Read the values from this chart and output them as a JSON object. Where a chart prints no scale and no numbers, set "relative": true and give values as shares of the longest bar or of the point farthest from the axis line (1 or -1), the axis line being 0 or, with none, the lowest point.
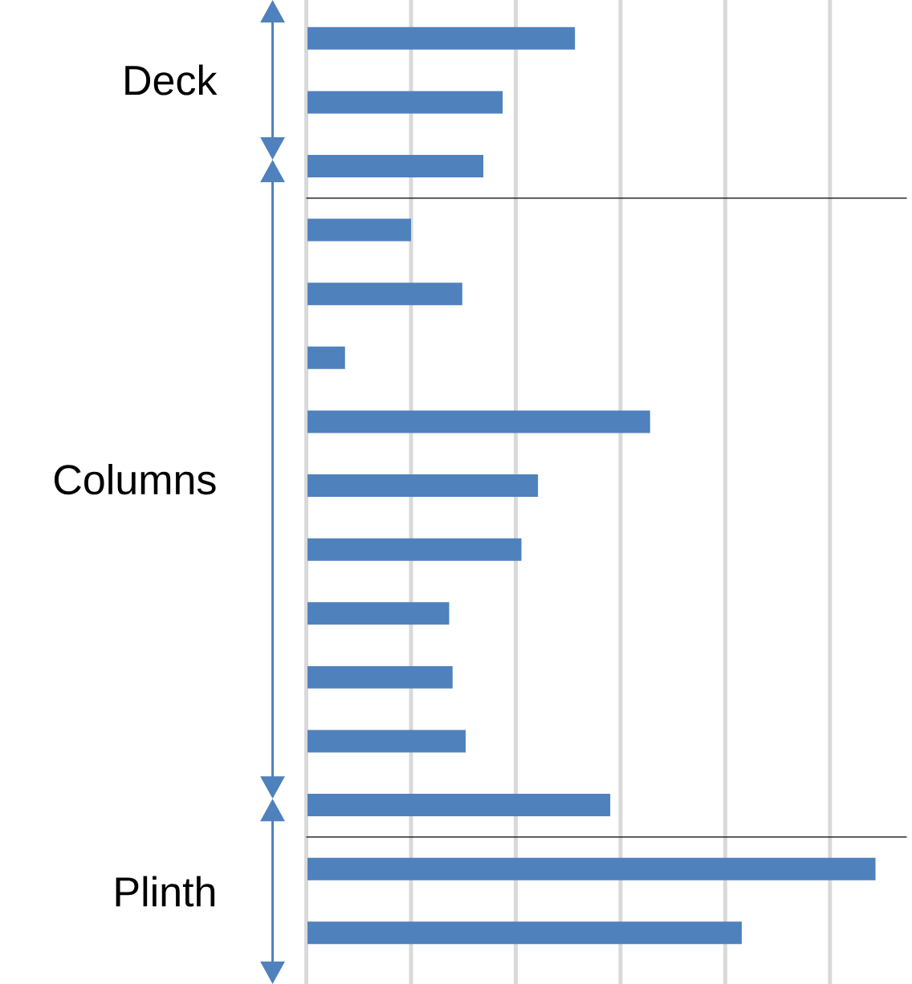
{
  "chart_data": {
    "type": "bar",
    "orientation": "horizontal",
    "relative": true,
    "grid": "x",
    "color": "#4f81bd",
    "categories": [
      null,
      null,
      null,
      null,
      null,
      null,
      null,
      null,
      null,
      null,
      null,
      null,
      null,
      null,
      null
    ],
    "values": [
      0.472,
      0.345,
      0.311,
      0.184,
      0.274,
      0.068,
      0.604,
      0.407,
      0.378,
      0.251,
      0.257,
      0.28,
      0.534,
      1.0,
      0.765
    ],
    "annotations": [
      "Deck",
      "Columns",
      "Plinth"
    ]
  }
}
